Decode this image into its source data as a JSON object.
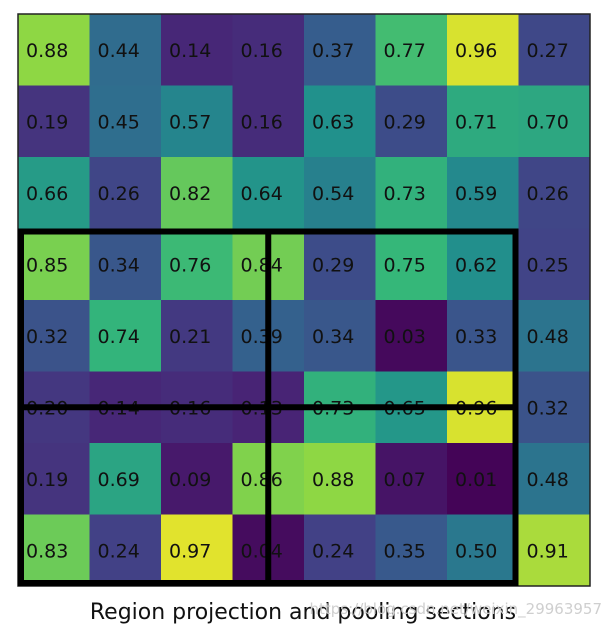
{
  "grid": {
    "rows": 8,
    "cols": 8,
    "values": [
      [
        "0.88",
        "0.44",
        "0.14",
        "0.16",
        "0.37",
        "0.77",
        "0.96",
        "0.27"
      ],
      [
        "0.19",
        "0.45",
        "0.57",
        "0.16",
        "0.63",
        "0.29",
        "0.71",
        "0.70"
      ],
      [
        "0.66",
        "0.26",
        "0.82",
        "0.64",
        "0.54",
        "0.73",
        "0.59",
        "0.26"
      ],
      [
        "0.85",
        "0.34",
        "0.76",
        "0.84",
        "0.29",
        "0.75",
        "0.62",
        "0.25"
      ],
      [
        "0.32",
        "0.74",
        "0.21",
        "0.39",
        "0.34",
        "0.03",
        "0.33",
        "0.48"
      ],
      [
        "0.20",
        "0.14",
        "0.16",
        "0.13",
        "0.73",
        "0.65",
        "0.96",
        "0.32"
      ],
      [
        "0.19",
        "0.69",
        "0.09",
        "0.86",
        "0.88",
        "0.07",
        "0.01",
        "0.48"
      ],
      [
        "0.83",
        "0.24",
        "0.97",
        "0.04",
        "0.24",
        "0.35",
        "0.50",
        "0.91"
      ]
    ],
    "colormap": "viridis"
  },
  "region": {
    "description_rows": [
      3,
      8
    ],
    "description_cols": [
      0,
      7
    ],
    "pooling_split_row": 5.5,
    "pooling_split_col": 3.5
  },
  "caption": "Region projection and pooling sections",
  "watermark": "https://blog.csdn.net/weixin_29963957"
}
